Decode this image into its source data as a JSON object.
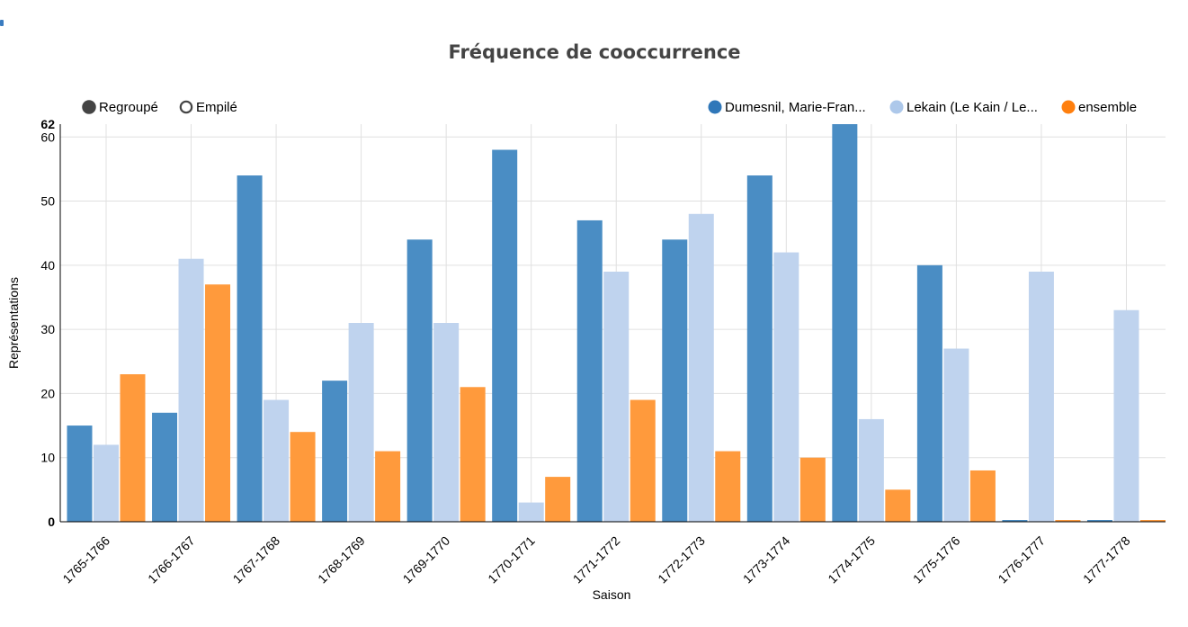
{
  "chart_data": {
    "type": "bar",
    "title": "Fréquence de cooccurrence",
    "xlabel": "Saison",
    "ylabel": "Représentations",
    "ylim": [
      0,
      62
    ],
    "y_max_label": "62",
    "y_ticks": [
      0,
      10,
      20,
      30,
      40,
      50,
      60
    ],
    "grid": true,
    "legend_position": "top-right",
    "mode_options": [
      {
        "label": "Regroupé",
        "selected": true
      },
      {
        "label": "Empilé",
        "selected": false
      }
    ],
    "categories": [
      "1765-1766",
      "1766-1767",
      "1767-1768",
      "1768-1769",
      "1769-1770",
      "1770-1771",
      "1771-1772",
      "1772-1773",
      "1773-1774",
      "1774-1775",
      "1775-1776",
      "1776-1777",
      "1777-1778"
    ],
    "series": [
      {
        "name": "Dumesnil, Marie-Fran...",
        "color": "#4a8dc4",
        "values": [
          15,
          17,
          54,
          22,
          44,
          58,
          47,
          44,
          54,
          62,
          40,
          0,
          0
        ]
      },
      {
        "name": "Lekain (Le Kain / Le...",
        "color": "#bfd3ee",
        "values": [
          12,
          41,
          19,
          31,
          31,
          3,
          39,
          48,
          42,
          16,
          27,
          39,
          33
        ]
      },
      {
        "name": "ensemble",
        "color": "#ff9a3c",
        "values": [
          23,
          37,
          14,
          11,
          21,
          7,
          19,
          11,
          10,
          5,
          8,
          0,
          0
        ]
      }
    ]
  }
}
